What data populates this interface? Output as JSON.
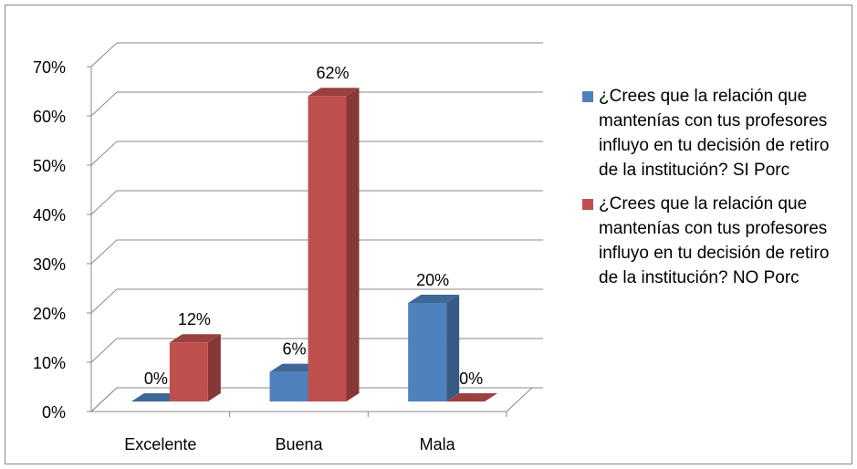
{
  "chart_data": {
    "type": "bar3d",
    "categories": [
      "Excelente",
      "Buena",
      "Mala"
    ],
    "series": [
      {
        "name": "¿Crees que la relación que mantenías con tus profesores influyo en tu decisión de  retiro de la institución? SI Porc",
        "color": "#4f81bd",
        "values": [
          0,
          6,
          20
        ],
        "value_labels": [
          "0%",
          "6%",
          "20%"
        ]
      },
      {
        "name": "¿Crees que la relación que mantenías con tus profesores influyo en tu decisión de  retiro de la institución? NO Porc",
        "color": "#c0504d",
        "values": [
          12,
          62,
          0
        ],
        "value_labels": [
          "12%",
          "62%",
          "0%"
        ]
      }
    ],
    "ylim": [
      0,
      70
    ],
    "yticks": [
      {
        "value": 0,
        "label": "0%"
      },
      {
        "value": 10,
        "label": "10%"
      },
      {
        "value": 20,
        "label": "20%"
      },
      {
        "value": 30,
        "label": "30%"
      },
      {
        "value": 40,
        "label": "40%"
      },
      {
        "value": 50,
        "label": "50%"
      },
      {
        "value": 60,
        "label": "60%"
      },
      {
        "value": 70,
        "label": "70%"
      }
    ],
    "grid": true,
    "legend": "right"
  }
}
